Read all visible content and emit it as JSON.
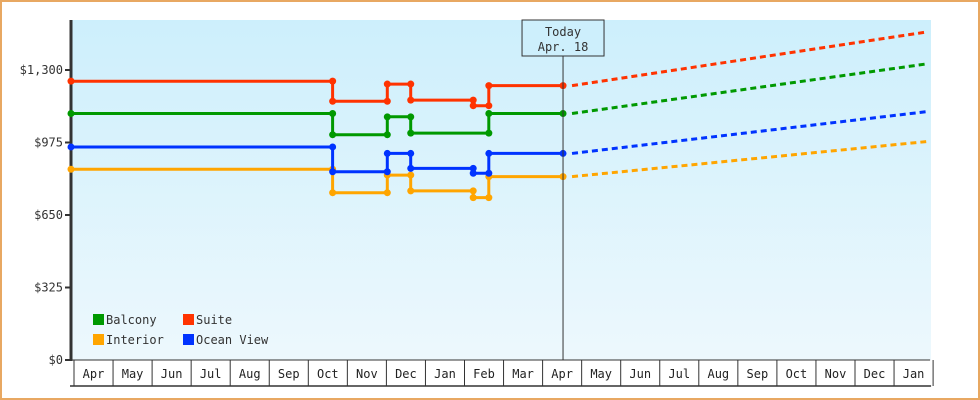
{
  "chart_data": {
    "type": "line",
    "title": "",
    "xlabel": "",
    "ylabel": "",
    "ylim": [
      0,
      1300
    ],
    "grid": false,
    "legend_position": "bottom-left inside plot",
    "y_ticks": [
      {
        "value": 0,
        "label": "$0"
      },
      {
        "value": 325,
        "label": "$325"
      },
      {
        "value": 650,
        "label": "$650"
      },
      {
        "value": 975,
        "label": "$975"
      },
      {
        "value": 1300,
        "label": "$1,300"
      }
    ],
    "x_months": [
      "Apr",
      "May",
      "Jun",
      "Jul",
      "Aug",
      "Sep",
      "Oct",
      "Nov",
      "Dec",
      "Jan",
      "Feb",
      "Mar",
      "Apr",
      "May",
      "Jun",
      "Jul",
      "Aug",
      "Sep",
      "Oct",
      "Nov",
      "Dec",
      "Jan"
    ],
    "x_unit": "months since start of first Apr",
    "today": {
      "title": "Today",
      "date": "Apr. 18",
      "x": 12.6
    },
    "series": [
      {
        "name": "Balcony",
        "color": "#009900",
        "history": [
          [
            0,
            1105
          ],
          [
            6.7,
            1105
          ],
          [
            6.7,
            1010
          ],
          [
            8.1,
            1010
          ],
          [
            8.1,
            1090
          ],
          [
            8.7,
            1090
          ],
          [
            8.7,
            1017
          ],
          [
            10.7,
            1017
          ],
          [
            10.7,
            1105
          ],
          [
            12.6,
            1105
          ]
        ],
        "forecast": [
          [
            12.6,
            1105
          ],
          [
            21.9,
            1327
          ]
        ]
      },
      {
        "name": "Suite",
        "color": "#ff3300",
        "history": [
          [
            0,
            1250
          ],
          [
            6.7,
            1250
          ],
          [
            6.7,
            1160
          ],
          [
            8.1,
            1160
          ],
          [
            8.1,
            1237
          ],
          [
            8.7,
            1237
          ],
          [
            8.7,
            1165
          ],
          [
            10.3,
            1165
          ],
          [
            10.3,
            1140
          ],
          [
            10.7,
            1140
          ],
          [
            10.7,
            1230
          ],
          [
            12.6,
            1230
          ]
        ],
        "forecast": [
          [
            12.6,
            1230
          ],
          [
            21.9,
            1470
          ]
        ]
      },
      {
        "name": "Interior",
        "color": "#ffa500",
        "history": [
          [
            0,
            855
          ],
          [
            6.7,
            855
          ],
          [
            6.7,
            750
          ],
          [
            8.1,
            750
          ],
          [
            8.1,
            829
          ],
          [
            8.7,
            829
          ],
          [
            8.7,
            758
          ],
          [
            10.3,
            758
          ],
          [
            10.3,
            728
          ],
          [
            10.7,
            728
          ],
          [
            10.7,
            822
          ],
          [
            12.6,
            822
          ]
        ],
        "forecast": [
          [
            12.6,
            822
          ],
          [
            21.9,
            979
          ]
        ]
      },
      {
        "name": "Ocean View",
        "color": "#0033ff",
        "history": [
          [
            0,
            955
          ],
          [
            6.7,
            955
          ],
          [
            6.7,
            844
          ],
          [
            8.1,
            844
          ],
          [
            8.1,
            926
          ],
          [
            8.7,
            926
          ],
          [
            8.7,
            859
          ],
          [
            10.3,
            859
          ],
          [
            10.3,
            837
          ],
          [
            10.7,
            837
          ],
          [
            10.7,
            926
          ],
          [
            12.6,
            926
          ]
        ],
        "forecast": [
          [
            12.6,
            926
          ],
          [
            21.9,
            1113
          ]
        ]
      }
    ],
    "legend": [
      {
        "label": "Balcony",
        "color": "#009900"
      },
      {
        "label": "Suite",
        "color": "#ff3300"
      },
      {
        "label": "Interior",
        "color": "#ffa500"
      },
      {
        "label": "Ocean View",
        "color": "#0033ff"
      }
    ]
  },
  "theme": {
    "frame_border": "#e8a862",
    "plot_bg_top": "#cdeffc",
    "plot_bg_bottom": "#edf8fd",
    "axis_color": "#333333"
  }
}
